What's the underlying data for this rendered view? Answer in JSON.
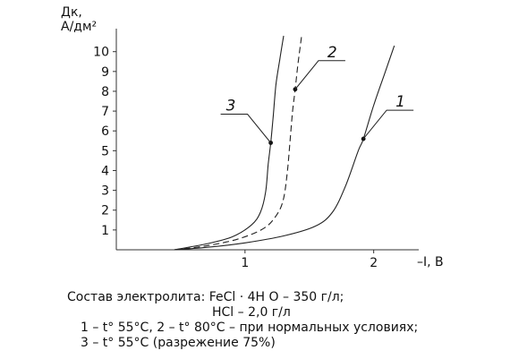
{
  "chart_data": {
    "type": "line",
    "ylabel_line1": "Дк,",
    "ylabel_line2": "А/дм²",
    "xlabel": "–I, В",
    "xlim": [
      0,
      2.35
    ],
    "ylim": [
      0,
      10.8
    ],
    "xticks": [
      1,
      2
    ],
    "yticks": [
      1,
      2,
      3,
      4,
      5,
      6,
      7,
      8,
      9,
      10
    ],
    "grid": false,
    "series": [
      {
        "name": "1",
        "style": "solid",
        "points": [
          [
            0.45,
            0
          ],
          [
            0.7,
            0.12
          ],
          [
            1.0,
            0.35
          ],
          [
            1.3,
            0.7
          ],
          [
            1.55,
            1.2
          ],
          [
            1.68,
            1.9
          ],
          [
            1.78,
            3.2
          ],
          [
            1.88,
            5.0
          ],
          [
            1.92,
            5.6
          ],
          [
            2.0,
            7.3
          ],
          [
            2.08,
            8.8
          ],
          [
            2.16,
            10.3
          ]
        ],
        "label_point": [
          1.92,
          5.6
        ]
      },
      {
        "name": "2",
        "style": "dashed",
        "points": [
          [
            0.45,
            0
          ],
          [
            0.7,
            0.2
          ],
          [
            0.95,
            0.55
          ],
          [
            1.15,
            1.1
          ],
          [
            1.25,
            1.8
          ],
          [
            1.3,
            2.6
          ],
          [
            1.33,
            4.0
          ],
          [
            1.35,
            5.5
          ],
          [
            1.37,
            7.0
          ],
          [
            1.39,
            8.1
          ],
          [
            1.41,
            9.3
          ],
          [
            1.44,
            10.8
          ]
        ],
        "label_point": [
          1.39,
          8.1
        ]
      },
      {
        "name": "3",
        "style": "solid",
        "points": [
          [
            0.45,
            0
          ],
          [
            0.7,
            0.3
          ],
          [
            0.9,
            0.65
          ],
          [
            1.05,
            1.25
          ],
          [
            1.12,
            1.9
          ],
          [
            1.16,
            2.9
          ],
          [
            1.18,
            4.3
          ],
          [
            1.2,
            5.4
          ],
          [
            1.22,
            6.8
          ],
          [
            1.24,
            8.3
          ],
          [
            1.27,
            9.6
          ],
          [
            1.3,
            10.8
          ]
        ],
        "label_point": [
          1.2,
          5.4
        ]
      }
    ]
  },
  "caption": {
    "line1": "Состав электролита: FeCl · 4H O – 350 г/л;",
    "line2": "HCl – 2,0 г/л",
    "line3": "1 – t° 55°C, 2 – t° 80°C – при нормальных условиях;",
    "line4": "3 – t° 55°C (разрежение 75%)"
  }
}
